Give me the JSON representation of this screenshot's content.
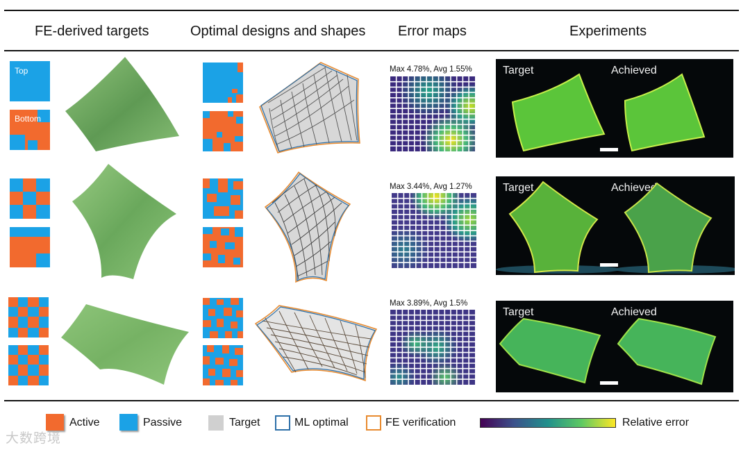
{
  "headers": {
    "fe_targets": "FE-derived targets",
    "optimal": "Optimal designs and shapes",
    "error_maps": "Error maps",
    "experiments": "Experiments"
  },
  "pattern_labels": {
    "top": "Top",
    "bottom": "Bottom"
  },
  "error_captions": [
    "Max 4.78%, Avg 1.55%",
    "Max 3.44%, Avg 1.27%",
    "Max 3.89%, Avg 1.5%"
  ],
  "photo_labels": {
    "target": "Target",
    "achieved": "Achieved"
  },
  "legend": {
    "active": "Active",
    "passive": "Passive",
    "target": "Target",
    "ml_optimal": "ML optimal",
    "fe_verification": "FE verification",
    "relative_error": "Relative  error"
  },
  "watermark": "大数跨境",
  "colors": {
    "active": "#f26a2e",
    "passive": "#1ba2e6",
    "target_gray": "#d0d0d0",
    "ml_optimal": "#2c6fa8",
    "fe_verification": "#e88a2e",
    "surface_green": "#7cb46a",
    "glow_green": "#7fe83a"
  }
}
